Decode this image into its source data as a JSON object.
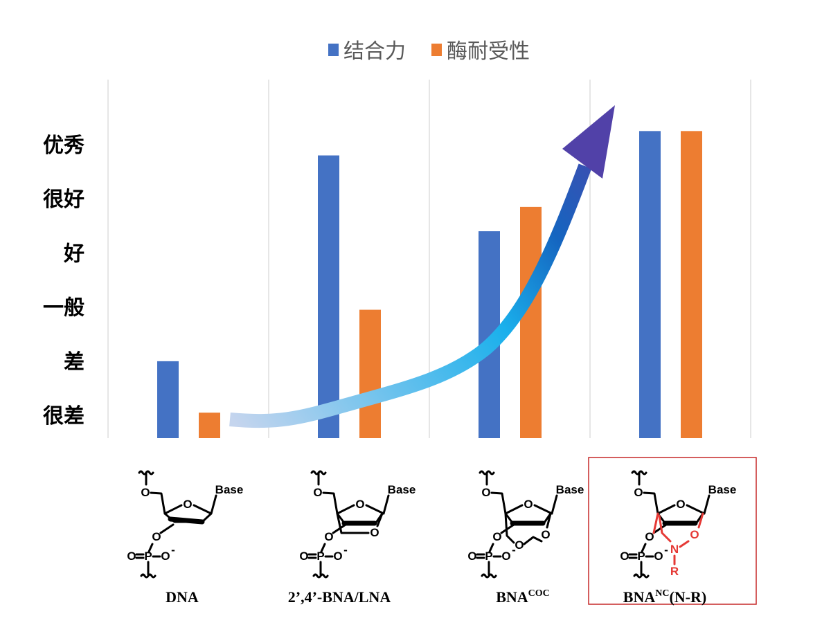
{
  "chart_data": {
    "type": "bar",
    "title": "",
    "xlabel": "",
    "ylabel": "",
    "categories": [
      "DNA",
      "2’,4’-BNA/LNA",
      "BNA^COC",
      "BNA^NC(N-R)"
    ],
    "y_tick_labels": [
      "很差",
      "差",
      "一般",
      "好",
      "很好",
      "优秀"
    ],
    "y_tick_values": [
      1,
      2,
      3,
      4,
      5,
      6
    ],
    "ylim": [
      0.58,
      7.2
    ],
    "grid": "vertical lines between categories",
    "legend_position": "top-right",
    "series": [
      {
        "name": "结合力",
        "color": "#4472C4",
        "values": [
          2.0,
          5.8,
          4.4,
          6.25
        ]
      },
      {
        "name": "酶耐受性",
        "color": "#ED7D31",
        "values": [
          1.05,
          2.95,
          4.85,
          6.25
        ]
      }
    ],
    "annotation": "rising-trend arrow (light blue to purple)"
  },
  "structures": [
    {
      "name": "DNA",
      "sup": "",
      "suffix": ""
    },
    {
      "name": "2’,4’-BNA/LNA",
      "sup": "",
      "suffix": ""
    },
    {
      "name": "BNA",
      "sup": "COC",
      "suffix": ""
    },
    {
      "name": "BNA",
      "sup": "NC",
      "suffix": "(N-R)",
      "highlighted": true,
      "highlight_color": "#C62828"
    }
  ],
  "atoms": {
    "base": "Base",
    "o": "O",
    "p": "P",
    "o_minus": "O",
    "minus": "-",
    "n": "N",
    "r": "R"
  }
}
